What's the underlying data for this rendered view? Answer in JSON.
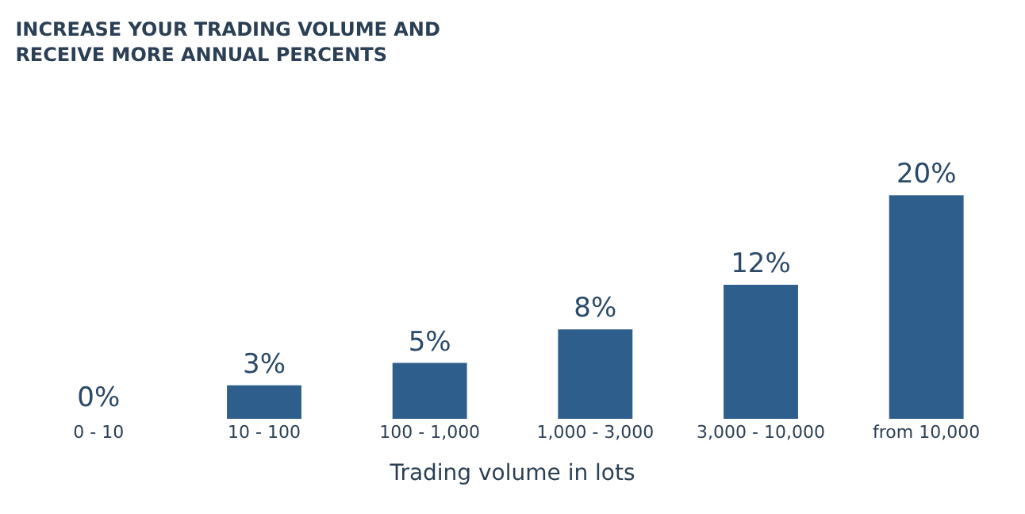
{
  "chart_data": {
    "type": "bar",
    "title": "INCREASE YOUR TRADING VOLUME AND\nRECEIVE MORE ANNUAL PERCENTS",
    "xlabel": "Trading volume in lots",
    "categories": [
      "0 - 10",
      "10 - 100",
      "100 - 1,000",
      "1,000 - 3,000",
      "3,000 - 10,000",
      "from 10,000"
    ],
    "values": [
      0,
      3,
      5,
      8,
      12,
      20
    ],
    "value_labels": [
      "0%",
      "3%",
      "5%",
      "8%",
      "12%",
      "20%"
    ],
    "color": "#2e5f8c"
  }
}
